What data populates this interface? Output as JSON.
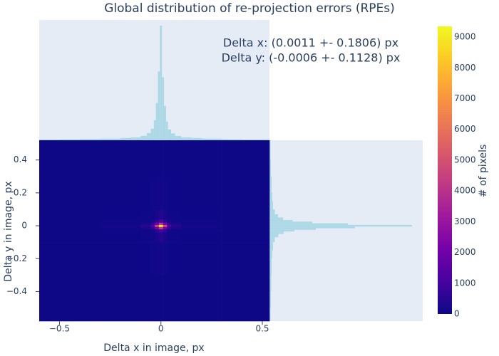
{
  "chart_data": {
    "type": "heatmap",
    "title": "Global distribution of re-projection errors (RPEs)",
    "annotations": [
      "Delta x: (0.0011 +- 0.1806) px",
      "Delta y: (-0.0006 +- 0.1128) px"
    ],
    "x_label": "Delta x in image, px",
    "y_label": "Delta y in image, px",
    "colorbar_title": "# of pixels",
    "xlim": [
      -0.6,
      0.535
    ],
    "ylim": [
      -0.58,
      0.52
    ],
    "xticks": [
      {
        "value": -0.5,
        "label": "−0.5"
      },
      0,
      0.5
    ],
    "yticks": [
      {
        "value": -0.4,
        "label": "−0.4"
      },
      {
        "value": -0.2,
        "label": "−0.2"
      },
      0,
      0.2,
      0.4
    ],
    "x_edges": [
      -0.6,
      -0.3,
      -0.1,
      -0.05,
      -0.03,
      -0.01,
      0.01,
      0.03,
      0.05,
      0.1,
      0.3,
      0.535
    ],
    "y_edges": [
      -0.58,
      -0.3,
      -0.1,
      -0.04,
      -0.02,
      -0.006,
      0.006,
      0.02,
      0.04,
      0.1,
      0.3,
      0.52
    ],
    "z": [
      [
        20,
        20,
        20,
        20,
        20,
        20,
        20,
        20,
        20,
        20,
        20
      ],
      [
        20,
        21,
        25,
        34,
        67,
        113,
        67,
        34,
        25,
        21,
        20
      ],
      [
        20,
        24,
        39,
        76,
        206,
        392,
        206,
        76,
        39,
        24,
        20
      ],
      [
        20,
        31,
        76,
        187,
        578,
        1136,
        578,
        187,
        76,
        31,
        20
      ],
      [
        20,
        62,
        229,
        648,
        2113,
        4205,
        2113,
        648,
        229,
        62,
        20
      ],
      [
        20,
        113,
        485,
        1415,
        4670,
        9320,
        4670,
        1415,
        485,
        113,
        20
      ],
      [
        20,
        62,
        229,
        648,
        2113,
        4205,
        2113,
        648,
        229,
        62,
        20
      ],
      [
        20,
        31,
        76,
        187,
        578,
        1136,
        578,
        187,
        76,
        31,
        20
      ],
      [
        20,
        24,
        39,
        76,
        206,
        392,
        206,
        76,
        39,
        24,
        20
      ],
      [
        20,
        21,
        25,
        34,
        67,
        113,
        67,
        34,
        25,
        21,
        20
      ],
      [
        20,
        20,
        20,
        20,
        20,
        20,
        20,
        20,
        20,
        20,
        20
      ]
    ],
    "zlim": [
      0,
      9350
    ],
    "colorbar_ticks": [
      0,
      1000,
      2000,
      3000,
      4000,
      5000,
      6000,
      7000,
      8000,
      9000
    ],
    "colorscale": [
      [
        0,
        "#0d0887"
      ],
      [
        0.111,
        "#46039f"
      ],
      [
        0.222,
        "#7201a8"
      ],
      [
        0.333,
        "#9c179e"
      ],
      [
        0.444,
        "#bd3786"
      ],
      [
        0.556,
        "#d8576b"
      ],
      [
        0.667,
        "#ed7953"
      ],
      [
        0.778,
        "#fb9f3a"
      ],
      [
        0.889,
        "#fdca26"
      ],
      [
        1,
        "#f0f921"
      ]
    ],
    "plot_bg": "#e5ecf6",
    "marginal_x": {
      "color": "#add8e6",
      "edges": [
        -0.6,
        -0.5,
        -0.4,
        -0.3,
        -0.2,
        -0.15,
        -0.1,
        -0.07,
        -0.05,
        -0.035,
        -0.025,
        -0.015,
        -0.005,
        0.005,
        0.015,
        0.025,
        0.035,
        0.05,
        0.07,
        0.1,
        0.15,
        0.2,
        0.3,
        0.4,
        0.535
      ],
      "counts": [
        300,
        400,
        500,
        600,
        800,
        1000,
        1500,
        2500,
        4000,
        7000,
        13000,
        24000,
        40000,
        22000,
        12000,
        6500,
        3800,
        2400,
        1500,
        1000,
        800,
        600,
        400,
        300
      ]
    },
    "marginal_y": {
      "color": "#add8e6",
      "edges": [
        -0.58,
        -0.5,
        -0.4,
        -0.3,
        -0.2,
        -0.15,
        -0.1,
        -0.07,
        -0.05,
        -0.035,
        -0.025,
        -0.015,
        -0.005,
        0.005,
        0.015,
        0.025,
        0.035,
        0.05,
        0.07,
        0.1,
        0.15,
        0.2,
        0.3,
        0.4,
        0.52
      ],
      "counts": [
        300,
        400,
        500,
        600,
        800,
        1000,
        1500,
        2500,
        4000,
        7000,
        13000,
        24000,
        40000,
        22000,
        12000,
        6500,
        3800,
        2400,
        1500,
        1000,
        800,
        600,
        400,
        300
      ]
    }
  }
}
